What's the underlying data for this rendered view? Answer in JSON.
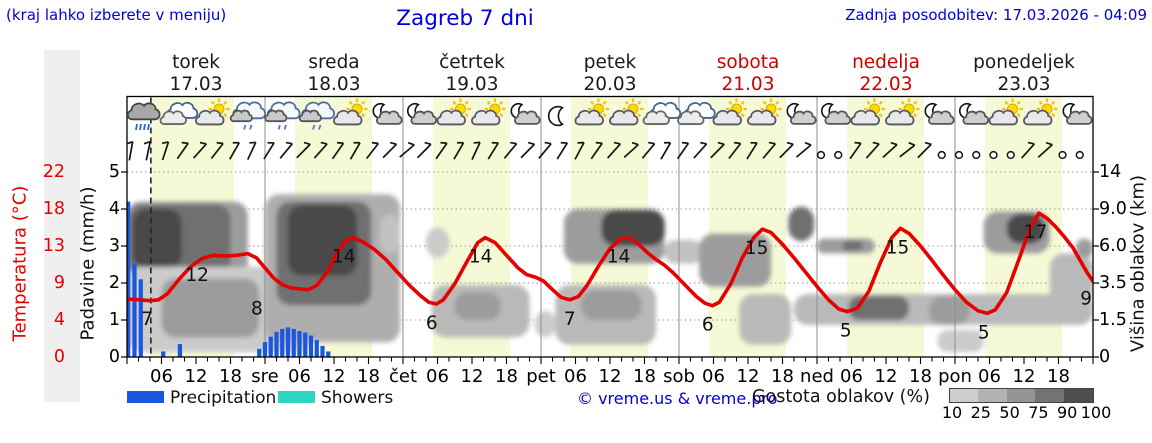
{
  "header": {
    "note": "(kraj lahko izberete v meniju)",
    "title": "Zagreb 7 dni",
    "last_update": "Zadnja posodobitev: 17.03.2026 - 04:09"
  },
  "days": [
    {
      "name": "torek",
      "date": "17.03",
      "color": "#1a1a1a"
    },
    {
      "name": "sreda",
      "date": "18.03",
      "color": "#1a1a1a"
    },
    {
      "name": "četrtek",
      "date": "19.03",
      "color": "#1a1a1a"
    },
    {
      "name": "petek",
      "date": "20.03",
      "color": "#1a1a1a"
    },
    {
      "name": "sobota",
      "date": "21.03",
      "color": "#cc0000"
    },
    {
      "name": "nedelja",
      "date": "22.03",
      "color": "#cc0000"
    },
    {
      "name": "ponedeljek",
      "date": "23.03",
      "color": "#1a1a1a"
    }
  ],
  "axes": {
    "temp": {
      "title": "Temperatura (°C)",
      "ticks": [
        "22",
        "18",
        "13",
        "9",
        "4",
        "0"
      ]
    },
    "precip": {
      "title": "Padavine (mm/h)",
      "ticks": [
        "5",
        "4",
        "3",
        "2",
        "1",
        "0"
      ]
    },
    "cloud_height": {
      "title": "Višina oblakov (km)",
      "ticks": [
        "14",
        "9.0",
        "6.0",
        "3.5",
        "1.5",
        "0"
      ]
    },
    "hour_labels": [
      "06",
      "12",
      "18"
    ],
    "day_abbrev": [
      "sre",
      "čet",
      "pet",
      "sob",
      "ned",
      "pon"
    ]
  },
  "legend": {
    "precipitation": "Precipitation",
    "showers": "Showers",
    "precip_color": "#1a57e0",
    "showers_color": "#2bd6c3"
  },
  "footer": {
    "credit": "© vreme.us & vreme.pro",
    "cloud_density_label": "Gostota oblakov (%)",
    "colorbar_ticks": [
      "10",
      "25",
      "50",
      "75",
      "90",
      "100"
    ],
    "colorbar_colors": [
      "#cdcdcd",
      "#b3b3b3",
      "#959595",
      "#737373",
      "#4d4d4d"
    ]
  },
  "chart_data": {
    "type": "line",
    "title": "Zagreb 7 dni",
    "x_unit": "hours from 17.03 00:00",
    "x_range_hours": [
      0,
      168
    ],
    "grid": true,
    "day_band_color": "#f5f9d5",
    "precip_axis": {
      "label": "Padavine (mm/h)",
      "range": [
        0,
        5
      ]
    },
    "temp_axis": {
      "label": "Temperatura (°C)",
      "tick_values": [
        0,
        4,
        9,
        13,
        18,
        22
      ]
    },
    "cloud_axis": {
      "label": "Višina oblakov (km)",
      "tick_values": [
        0,
        1.5,
        3.5,
        6.0,
        9.0,
        14
      ]
    },
    "current_time_hour": 4.15,
    "temperature": {
      "color": "#e60000",
      "points": [
        [
          0,
          6.9
        ],
        [
          2,
          6.8
        ],
        [
          4,
          6.7
        ],
        [
          5.5,
          6.8
        ],
        [
          7,
          7.5
        ],
        [
          9,
          9.2
        ],
        [
          11,
          10.7
        ],
        [
          13,
          11.7
        ],
        [
          15,
          12.1
        ],
        [
          17,
          12.0
        ],
        [
          19,
          12.1
        ],
        [
          21,
          12.3
        ],
        [
          22.5,
          11.8
        ],
        [
          24,
          10.6
        ],
        [
          25.5,
          9.4
        ],
        [
          27,
          8.6
        ],
        [
          28.5,
          8.2
        ],
        [
          30,
          8.1
        ],
        [
          31.5,
          8.0
        ],
        [
          33,
          8.5
        ],
        [
          35,
          10.3
        ],
        [
          36.5,
          12.3
        ],
        [
          38,
          13.8
        ],
        [
          39.3,
          14.2
        ],
        [
          41,
          13.7
        ],
        [
          43,
          12.8
        ],
        [
          45,
          11.6
        ],
        [
          47,
          10.1
        ],
        [
          49,
          8.6
        ],
        [
          51,
          7.3
        ],
        [
          52.5,
          6.5
        ],
        [
          53.8,
          6.3
        ],
        [
          55,
          6.8
        ],
        [
          57,
          8.7
        ],
        [
          59,
          11.2
        ],
        [
          61,
          13.6
        ],
        [
          62.3,
          14.2
        ],
        [
          64,
          13.6
        ],
        [
          66,
          12.1
        ],
        [
          68,
          10.6
        ],
        [
          69.5,
          9.8
        ],
        [
          71,
          9.5
        ],
        [
          72.5,
          9.0
        ],
        [
          74,
          8.0
        ],
        [
          75.5,
          7.1
        ],
        [
          77,
          6.8
        ],
        [
          78.5,
          7.2
        ],
        [
          80,
          8.5
        ],
        [
          82,
          10.8
        ],
        [
          84,
          12.9
        ],
        [
          86,
          14.1
        ],
        [
          87.5,
          14.1
        ],
        [
          89,
          13.4
        ],
        [
          90.5,
          12.4
        ],
        [
          92,
          11.6
        ],
        [
          93.5,
          10.9
        ],
        [
          95,
          10.0
        ],
        [
          97,
          8.6
        ],
        [
          99,
          7.2
        ],
        [
          100.5,
          6.4
        ],
        [
          101.8,
          6.1
        ],
        [
          103,
          6.5
        ],
        [
          105,
          8.7
        ],
        [
          107,
          11.8
        ],
        [
          109,
          14.2
        ],
        [
          110.5,
          15.2
        ],
        [
          112,
          14.8
        ],
        [
          114,
          13.4
        ],
        [
          116,
          11.8
        ],
        [
          118,
          10.1
        ],
        [
          120,
          8.4
        ],
        [
          122,
          6.8
        ],
        [
          123.8,
          5.7
        ],
        [
          125.3,
          5.4
        ],
        [
          127,
          5.8
        ],
        [
          129,
          7.8
        ],
        [
          131,
          11.2
        ],
        [
          133,
          14.2
        ],
        [
          134.5,
          15.3
        ],
        [
          136,
          14.7
        ],
        [
          138,
          13.2
        ],
        [
          140,
          11.5
        ],
        [
          142,
          9.7
        ],
        [
          144,
          8.0
        ],
        [
          146,
          6.5
        ],
        [
          148,
          5.5
        ],
        [
          149.6,
          5.2
        ],
        [
          151,
          5.6
        ],
        [
          153,
          7.7
        ],
        [
          155,
          11.4
        ],
        [
          157,
          15.2
        ],
        [
          158.6,
          17.1
        ],
        [
          160,
          16.5
        ],
        [
          161.5,
          15.5
        ],
        [
          163,
          14.3
        ],
        [
          164.5,
          13.0
        ],
        [
          166,
          11.2
        ],
        [
          167,
          10.0
        ],
        [
          168,
          9.0
        ]
      ],
      "labels": [
        [
          3.5,
          6.8,
          "7"
        ],
        [
          12.2,
          12.0,
          "12"
        ],
        [
          22.6,
          8.0,
          "8"
        ],
        [
          37.7,
          14.2,
          "14"
        ],
        [
          53,
          6.3,
          "6"
        ],
        [
          61.5,
          14.2,
          "14"
        ],
        [
          77,
          6.8,
          "7"
        ],
        [
          85.5,
          14.2,
          "14"
        ],
        [
          101,
          6.1,
          "6"
        ],
        [
          109.5,
          15.2,
          "15"
        ],
        [
          125,
          5.4,
          "5"
        ],
        [
          134,
          15.3,
          "15"
        ],
        [
          149,
          5.2,
          "5"
        ],
        [
          158,
          17.1,
          "17"
        ],
        [
          166.8,
          9.2,
          "9"
        ]
      ]
    },
    "precipitation": {
      "color": "#1a57e0",
      "bar_values_mm_h": [
        [
          0.2,
          4.2
        ],
        [
          1.3,
          2.5
        ],
        [
          2.4,
          2.1
        ],
        [
          6.3,
          0.15
        ],
        [
          9.2,
          0.35
        ],
        [
          23,
          0.22
        ],
        [
          24,
          0.4
        ],
        [
          25,
          0.55
        ],
        [
          26,
          0.68
        ],
        [
          27,
          0.76
        ],
        [
          28,
          0.8
        ],
        [
          29,
          0.76
        ],
        [
          30,
          0.7
        ],
        [
          31,
          0.66
        ],
        [
          32,
          0.58
        ],
        [
          33,
          0.46
        ],
        [
          34,
          0.3
        ],
        [
          35,
          0.15
        ]
      ]
    },
    "clouds": {
      "density_levels_pct": [
        10,
        25,
        50,
        75,
        90,
        100
      ],
      "blobs_h1_h2_kmlow_kmhigh_density": [
        [
          0,
          21,
          1.0,
          10.0,
          50
        ],
        [
          0.3,
          18,
          2.9,
          9.6,
          75
        ],
        [
          1,
          9.5,
          4.5,
          9.0,
          90
        ],
        [
          0,
          32,
          0.2,
          4.6,
          25
        ],
        [
          6,
          23,
          0.8,
          3.8,
          50
        ],
        [
          24.5,
          34,
          1.2,
          4.3,
          75
        ],
        [
          24,
          47.5,
          0.6,
          11,
          40
        ],
        [
          26,
          42.5,
          2.3,
          10,
          75
        ],
        [
          28,
          40,
          4.0,
          9.5,
          90
        ],
        [
          44,
          47.5,
          5.5,
          8.6,
          30
        ],
        [
          52,
          56,
          5.2,
          7.5,
          25
        ],
        [
          53,
          70,
          0.8,
          3.4,
          35
        ],
        [
          57,
          65,
          1.5,
          3.0,
          50
        ],
        [
          71,
          74.5,
          0.8,
          2.0,
          25
        ],
        [
          74.5,
          92,
          0.5,
          3.4,
          35
        ],
        [
          79,
          89.5,
          1.5,
          3.1,
          50
        ],
        [
          76,
          93.5,
          4.8,
          9.0,
          50
        ],
        [
          82.5,
          93.5,
          6.0,
          8.9,
          90
        ],
        [
          93.5,
          100,
          4.8,
          6.5,
          30
        ],
        [
          99.5,
          112,
          3.3,
          7.0,
          50
        ],
        [
          106.5,
          115.5,
          0.5,
          2.9,
          35
        ],
        [
          115,
          119.5,
          6.4,
          9.3,
          75
        ],
        [
          120,
          130,
          5.5,
          6.6,
          50
        ],
        [
          124.5,
          128,
          5.7,
          6.4,
          75
        ],
        [
          116,
          168,
          1.3,
          2.9,
          35
        ],
        [
          125.5,
          136,
          1.5,
          2.8,
          75
        ],
        [
          139.5,
          146.5,
          1.3,
          2.8,
          50
        ],
        [
          141,
          149,
          0.2,
          1.1,
          25
        ],
        [
          149,
          160.5,
          5.5,
          8.8,
          50
        ],
        [
          153,
          159.5,
          6.2,
          8.6,
          90
        ],
        [
          160.5,
          168,
          2.4,
          5.5,
          35
        ],
        [
          165,
          168,
          5.2,
          6.6,
          50
        ]
      ]
    },
    "wind_barbs": [
      "b80",
      "b78",
      "b72",
      "b55",
      "b48",
      "b52",
      "b60",
      "b65",
      "b58",
      "b50",
      "b45",
      "b48",
      "b55",
      "b60",
      "b52",
      "b45",
      "b40",
      "b45",
      "b55",
      "b60",
      "b65",
      "b58",
      "b50",
      "b45",
      "b50",
      "b58",
      "b62",
      "b55",
      "b48",
      "b42",
      "b50",
      "b60",
      "b55",
      "b48",
      "b45",
      "b52",
      "b58",
      "b50",
      "b45",
      "b40",
      "c",
      "c",
      "b55",
      "b48",
      "b42",
      "b38",
      "b45",
      "c",
      "c",
      "c",
      "c",
      "c",
      "b48",
      "b42",
      "c",
      "c"
    ],
    "weather_icons": [
      "rain",
      "cloudy",
      "partly-sunny",
      "drizzle",
      "drizzle",
      "drizzle",
      "partly-sunny",
      "night-cloudy",
      "night-cloudy",
      "partly-sunny",
      "partly-sunny",
      "night-cloudy",
      "moon",
      "partly-sunny",
      "partly-sunny",
      "cloudy",
      "cloudy",
      "partly-sunny",
      "partly-sunny",
      "night-cloudy",
      "night-cloudy",
      "partly-sunny",
      "partly-sunny",
      "night-cloudy",
      "night-cloudy",
      "partly-sunny",
      "partly-sunny",
      "night-cloudy"
    ]
  }
}
